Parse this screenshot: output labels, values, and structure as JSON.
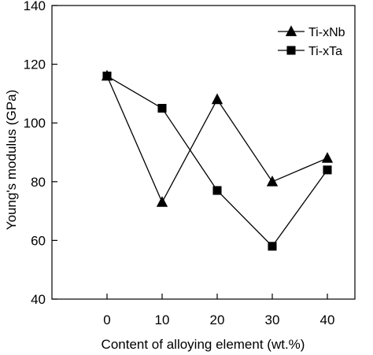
{
  "chart_data": {
    "type": "line",
    "title": "",
    "xlabel": "Content of alloying element  (wt.%)",
    "ylabel": "Young's modulus  (GPa)",
    "xlim": [
      -10,
      45
    ],
    "ylim": [
      40,
      140
    ],
    "x_ticks": [
      0,
      10,
      20,
      30,
      40
    ],
    "y_ticks": [
      40,
      60,
      80,
      100,
      120,
      140
    ],
    "grid": false,
    "legend_position": "top-right",
    "x": [
      0,
      10,
      20,
      30,
      40
    ],
    "series": [
      {
        "name": "Ti-xNb",
        "marker": "triangle",
        "color": "#000000",
        "values": [
          116,
          73,
          108,
          80,
          88
        ]
      },
      {
        "name": "Ti-xTa",
        "marker": "square",
        "color": "#000000",
        "values": [
          116,
          105,
          77,
          58,
          84
        ]
      }
    ]
  }
}
